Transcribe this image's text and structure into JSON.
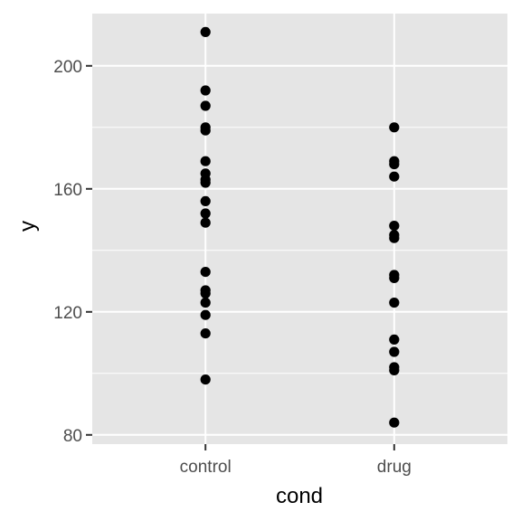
{
  "chart_data": {
    "type": "scatter",
    "xlabel": "cond",
    "ylabel": "y",
    "categories": [
      "control",
      "drug"
    ],
    "ylim": [
      77,
      217
    ],
    "yticks": [
      80,
      120,
      160,
      200
    ],
    "grid": true,
    "series": [
      {
        "category": "control",
        "values": [
          211,
          192,
          187,
          180,
          179,
          169,
          165,
          163,
          162,
          156,
          152,
          149,
          133,
          127,
          126,
          123,
          119,
          113,
          98
        ]
      },
      {
        "category": "drug",
        "values": [
          180,
          169,
          168,
          164,
          148,
          145,
          144,
          132,
          131,
          123,
          111,
          107,
          102,
          101,
          84
        ]
      }
    ],
    "colors": {
      "panel_bg": "#e5e5e5",
      "grid": "#ffffff",
      "point": "#000000",
      "tick": "#333333"
    }
  }
}
